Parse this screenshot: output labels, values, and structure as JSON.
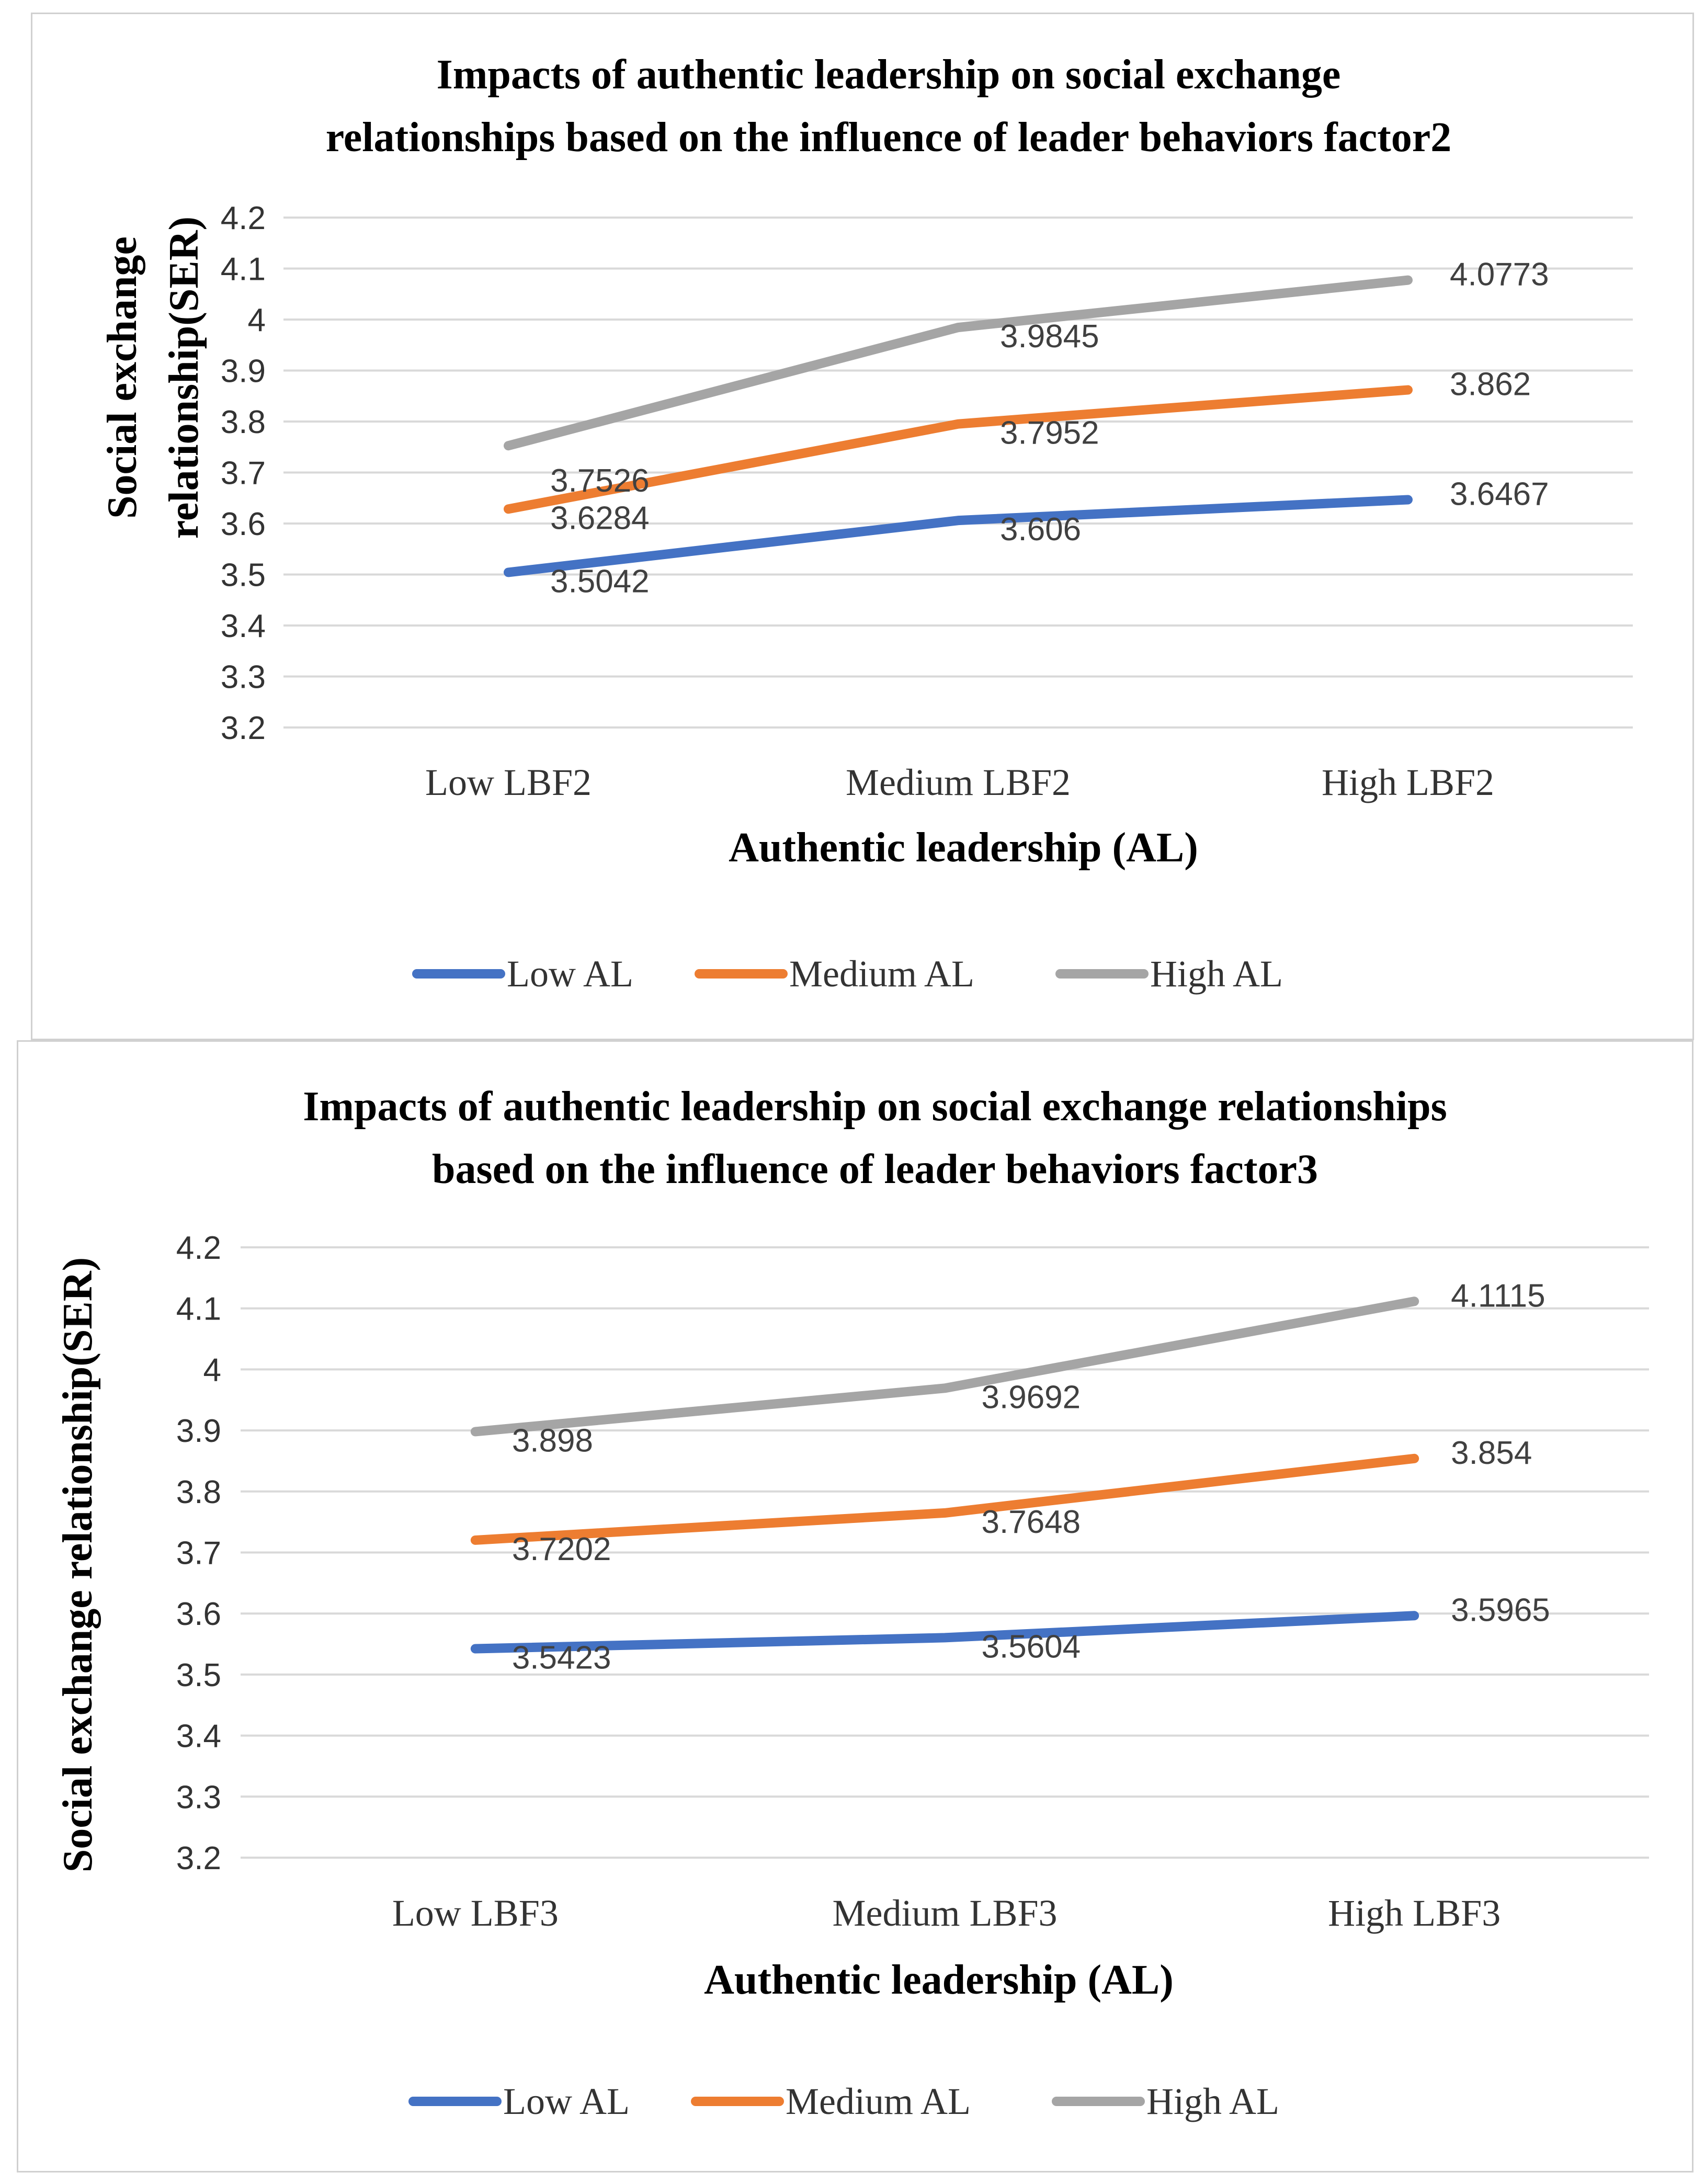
{
  "chart_data": [
    {
      "type": "line",
      "title_lines": [
        "Impacts of authentic leadership on  social exchange",
        "relationships based on the influence of leader behaviors factor2"
      ],
      "xlabel": "Authentic leadership (AL)",
      "ylabel_lines": [
        "Social exchange",
        "relationship(SER)"
      ],
      "categories": [
        "Low LBF2",
        "Medium LBF2",
        "High LBF2"
      ],
      "ylim": [
        3.2,
        4.2
      ],
      "yticks": [
        "3.2",
        "3.3",
        "3.4",
        "3.5",
        "3.6",
        "3.7",
        "3.8",
        "3.9",
        "4",
        "4.1",
        "4.2"
      ],
      "grid": true,
      "legend_position": "bottom",
      "series": [
        {
          "name": "Low AL",
          "color": "#4472C4",
          "values": [
            3.5042,
            3.606,
            3.6467
          ],
          "labels": [
            "3.5042",
            "3.606",
            "3.6467"
          ]
        },
        {
          "name": "Medium AL",
          "color": "#ED7D31",
          "values": [
            3.6284,
            3.7952,
            3.862
          ],
          "labels": [
            "3.6284",
            "3.7952",
            "3.862"
          ]
        },
        {
          "name": "High AL",
          "color": "#A5A5A5",
          "values": [
            3.7526,
            3.9845,
            4.0773
          ],
          "labels": [
            "3.7526",
            "3.9845",
            "4.0773"
          ]
        }
      ]
    },
    {
      "type": "line",
      "title_lines": [
        "Impacts of authentic leadership on  social exchange relationships",
        "based on the influence of leader behaviors factor3"
      ],
      "xlabel": "Authentic leadership (AL)",
      "ylabel_lines": [
        "Social exchange relationship(SER)"
      ],
      "categories": [
        "Low LBF3",
        "Medium LBF3",
        "High LBF3"
      ],
      "ylim": [
        3.2,
        4.2
      ],
      "yticks": [
        "3.2",
        "3.3",
        "3.4",
        "3.5",
        "3.6",
        "3.7",
        "3.8",
        "3.9",
        "4",
        "4.1",
        "4.2"
      ],
      "grid": true,
      "legend_position": "bottom",
      "series": [
        {
          "name": "Low AL",
          "color": "#4472C4",
          "values": [
            3.5423,
            3.5604,
            3.5965
          ],
          "labels": [
            "3.5423",
            "3.5604",
            "3.5965"
          ]
        },
        {
          "name": "Medium AL",
          "color": "#ED7D31",
          "values": [
            3.7202,
            3.7648,
            3.854
          ],
          "labels": [
            "3.7202",
            "3.7648",
            "3.854"
          ]
        },
        {
          "name": "High AL",
          "color": "#A5A5A5",
          "values": [
            3.898,
            3.9692,
            4.1115
          ],
          "labels": [
            "3.898",
            "3.9692",
            "4.1115"
          ]
        }
      ]
    }
  ]
}
